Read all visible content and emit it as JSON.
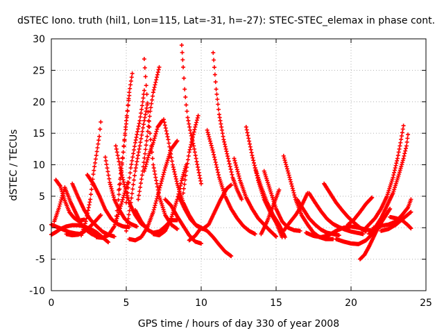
{
  "chart_data": {
    "type": "scatter",
    "title": "dSTEC Iono. truth (hil1, Lon=115, Lat=-31, h=-27): STEC-STEC_elemax in phase cont.",
    "xlabel": "GPS time / hours of day 330 of year 2008",
    "ylabel": "dSTEC  / TECUs",
    "xlim": [
      0,
      25
    ],
    "ylim": [
      -10,
      30
    ],
    "xticks": [
      "0",
      "5",
      "10",
      "15",
      "20",
      "25"
    ],
    "yticks": [
      "-10",
      "-5",
      "0",
      "5",
      "10",
      "15",
      "20",
      "25",
      "30"
    ],
    "grid": true,
    "legend": "none",
    "marker": "plus",
    "color": "#ff0000",
    "series": [
      {
        "x": [
          0.0,
          0.4,
          0.8,
          1.2,
          1.6,
          2.0
        ],
        "y": [
          0.5,
          0.1,
          -0.3,
          -0.7,
          -0.9,
          -1.0
        ]
      },
      {
        "x": [
          0.0,
          0.3,
          0.6,
          1.0,
          1.4,
          1.8,
          2.2,
          2.6,
          3.0,
          3.4,
          3.8
        ],
        "y": [
          -1.1,
          -0.7,
          -0.2,
          0.2,
          0.4,
          0.4,
          0.2,
          -0.2,
          -0.7,
          -1.5,
          -2.3
        ]
      },
      {
        "x": [
          0.3,
          0.6,
          0.9,
          1.2,
          1.5,
          1.8,
          2.2
        ],
        "y": [
          7.6,
          6.6,
          4.3,
          2.5,
          1.6,
          1.1,
          1.3
        ]
      },
      {
        "x": [
          0.2,
          0.5,
          0.9,
          1.3,
          1.7,
          2.0,
          2.4,
          2.7,
          3.0
        ],
        "y": [
          1.0,
          3.1,
          6.4,
          4.0,
          2.0,
          0.5,
          -0.5,
          -1.0,
          -1.3
        ]
      },
      {
        "x": [
          1.4,
          1.8,
          2.2,
          2.6,
          3.0,
          3.4,
          3.8,
          4.2
        ],
        "y": [
          7.0,
          4.8,
          2.8,
          1.3,
          0.3,
          -0.6,
          -1.1,
          -1.4
        ]
      },
      {
        "x": [
          1.0,
          1.4,
          1.8,
          2.2,
          2.6,
          3.0,
          3.3
        ],
        "y": [
          -1.0,
          -1.2,
          -1.1,
          -0.6,
          0.2,
          1.2,
          2.0
        ]
      },
      {
        "x": [
          2.0,
          2.3,
          2.6,
          2.8,
          3.0,
          3.2,
          3.3
        ],
        "y": [
          -1.2,
          1.0,
          4.5,
          8.5,
          11.5,
          14.5,
          16.8
        ]
      },
      {
        "x": [
          2.4,
          2.8,
          3.2,
          3.6,
          4.0,
          4.4,
          4.8,
          5.2
        ],
        "y": [
          8.4,
          7.0,
          5.1,
          2.9,
          1.4,
          0.6,
          0.2,
          0.1
        ]
      },
      {
        "x": [
          3.6,
          3.9,
          4.2,
          4.5,
          4.9,
          5.3,
          5.7
        ],
        "y": [
          11.2,
          7.2,
          4.5,
          3.0,
          1.4,
          0.6,
          0.2
        ]
      },
      {
        "x": [
          3.0,
          3.4,
          3.8,
          4.2,
          4.5,
          4.8,
          5.1
        ],
        "y": [
          -1.5,
          -1.6,
          -1.2,
          0.2,
          2.4,
          4.8,
          7.2
        ]
      },
      {
        "x": [
          4.3,
          4.6,
          4.9,
          5.2,
          5.6,
          6.0,
          6.4
        ],
        "y": [
          13.0,
          9.5,
          6.5,
          4.0,
          2.0,
          0.6,
          0.0
        ]
      },
      {
        "x": [
          4.3,
          4.6,
          4.8,
          5.0,
          5.2
        ],
        "y": [
          1.0,
          7.0,
          12.0,
          17.0,
          21.0
        ]
      },
      {
        "x": [
          4.5,
          4.8,
          5.0,
          5.2,
          5.4
        ],
        "y": [
          6.0,
          12.0,
          16.5,
          21.5,
          24.5
        ]
      },
      {
        "x": [
          5.0,
          5.3,
          5.6,
          5.9,
          6.2,
          6.4
        ],
        "y": [
          -0.5,
          4.0,
          9.0,
          13.0,
          17.0,
          19.5
        ]
      },
      {
        "x": [
          5.0,
          5.3,
          5.6,
          5.9,
          6.1,
          6.2
        ],
        "y": [
          4.0,
          9.5,
          13.5,
          17.0,
          20.0,
          21.8
        ]
      },
      {
        "x": [
          6.2,
          6.5,
          6.8,
          7.2,
          7.6,
          8.0,
          8.4
        ],
        "y": [
          26.8,
          17.0,
          10.0,
          5.0,
          2.0,
          0.5,
          -0.2
        ]
      },
      {
        "x": [
          5.8,
          6.1,
          6.4,
          6.6,
          6.8,
          7.0,
          7.2
        ],
        "y": [
          4.5,
          9.0,
          14.5,
          18.5,
          21.5,
          23.5,
          25.5
        ]
      },
      {
        "x": [
          6.2,
          6.5,
          6.8,
          7.1,
          7.4
        ],
        "y": [
          9.0,
          11.5,
          13.5,
          16.0,
          17.0
        ]
      },
      {
        "x": [
          5.2,
          5.6,
          6.0,
          6.4,
          6.8,
          7.2,
          7.6,
          8.0,
          8.4
        ],
        "y": [
          -1.8,
          -2.0,
          -1.5,
          0.0,
          2.5,
          6.0,
          9.5,
          12.5,
          13.8
        ]
      },
      {
        "x": [
          5.6,
          6.0,
          6.4,
          6.8,
          7.2,
          7.6,
          8.0,
          8.4
        ],
        "y": [
          2.8,
          1.0,
          -0.3,
          -0.8,
          -0.6,
          0.2,
          1.2,
          1.2
        ]
      },
      {
        "x": [
          7.5,
          7.8,
          8.1,
          8.4,
          8.8,
          9.2,
          9.6,
          10.0
        ],
        "y": [
          17.2,
          14.0,
          10.0,
          7.0,
          4.0,
          2.0,
          0.5,
          0.0
        ]
      },
      {
        "x": [
          6.8,
          7.2,
          7.6,
          8.0,
          8.4,
          8.7,
          9.0
        ],
        "y": [
          -1.0,
          -1.2,
          -0.5,
          1.5,
          4.5,
          7.5,
          10.0
        ]
      },
      {
        "x": [
          7.6,
          8.0,
          8.4,
          8.8,
          9.2,
          9.6,
          10.0
        ],
        "y": [
          4.5,
          3.5,
          1.8,
          0.3,
          -1.2,
          -2.2,
          -2.5
        ]
      },
      {
        "x": [
          8.7,
          8.8,
          8.9,
          9.0,
          9.1,
          9.3,
          9.5,
          9.7,
          10.0
        ],
        "y": [
          29.0,
          25.5,
          22.0,
          19.5,
          17.5,
          15.0,
          13.0,
          10.5,
          7.0
        ]
      },
      {
        "x": [
          8.8,
          9.0,
          9.2,
          9.4,
          9.6,
          9.8
        ],
        "y": [
          5.5,
          9.0,
          12.0,
          14.0,
          16.0,
          17.8
        ]
      },
      {
        "x": [
          8.5,
          8.9,
          9.3,
          9.7,
          10.1,
          10.5,
          10.9,
          11.3,
          11.7,
          12.0
        ],
        "y": [
          5.0,
          3.0,
          1.3,
          0.3,
          -0.2,
          0.5,
          2.5,
          4.5,
          6.2,
          6.8
        ]
      },
      {
        "x": [
          9.2,
          9.6,
          10.0,
          10.4,
          10.8,
          11.2,
          11.6,
          12.0
        ],
        "y": [
          -2.0,
          -1.3,
          0.0,
          -0.5,
          -1.5,
          -2.7,
          -3.8,
          -4.5
        ]
      },
      {
        "x": [
          10.8,
          11.0,
          11.2,
          11.5,
          11.8,
          12.1,
          12.4,
          12.7
        ],
        "y": [
          27.8,
          22.0,
          18.0,
          14.0,
          11.0,
          8.0,
          6.0,
          4.5
        ]
      },
      {
        "x": [
          10.4,
          10.8,
          11.2,
          11.6,
          12.0,
          12.4,
          12.8,
          13.2,
          13.6
        ],
        "y": [
          15.5,
          12.0,
          8.0,
          5.0,
          3.0,
          1.5,
          0.3,
          -0.5,
          -1.0
        ]
      },
      {
        "x": [
          12.2,
          12.6,
          13.0,
          13.4,
          13.8,
          14.2,
          14.6,
          15.0
        ],
        "y": [
          11.0,
          7.5,
          4.8,
          3.0,
          1.5,
          0.5,
          -0.5,
          -1.4
        ]
      },
      {
        "x": [
          13.0,
          13.4,
          13.8,
          14.2,
          14.6,
          15.0,
          15.4
        ],
        "y": [
          16.0,
          11.5,
          7.5,
          4.5,
          2.5,
          0.8,
          -1.5
        ]
      },
      {
        "x": [
          13.6,
          14.0,
          14.4,
          14.8,
          15.2,
          15.6
        ],
        "y": [
          9.5,
          6.5,
          4.0,
          2.0,
          0.5,
          -1.5
        ]
      },
      {
        "x": [
          14.2,
          14.6,
          15.0,
          15.4,
          15.8,
          16.2,
          16.6
        ],
        "y": [
          9.0,
          6.0,
          3.0,
          1.0,
          0.0,
          -0.4,
          -0.5
        ]
      },
      {
        "x": [
          14.0,
          14.4,
          14.8,
          15.2
        ],
        "y": [
          -1.0,
          1.0,
          3.5,
          6.0
        ]
      },
      {
        "x": [
          15.5,
          15.9,
          16.3,
          16.7,
          17.1,
          17.5,
          17.9,
          18.3,
          18.8
        ],
        "y": [
          11.4,
          8.0,
          4.5,
          2.0,
          0.5,
          -0.8,
          -1.5,
          -1.8,
          -1.8
        ]
      },
      {
        "x": [
          16.4,
          16.8,
          17.2,
          17.6,
          18.0,
          18.4,
          18.8,
          19.2
        ],
        "y": [
          4.5,
          3.0,
          1.5,
          0.5,
          -0.3,
          -0.8,
          -1.0,
          -1.2
        ]
      },
      {
        "x": [
          15.5,
          15.9,
          16.3,
          16.7,
          17.1
        ],
        "y": [
          -0.5,
          0.8,
          2.0,
          3.5,
          5.5
        ]
      },
      {
        "x": [
          17.2,
          17.6,
          18.0,
          18.4,
          18.8,
          19.2,
          19.6,
          20.0,
          20.4,
          20.8
        ],
        "y": [
          5.5,
          4.0,
          2.6,
          1.4,
          0.6,
          0.1,
          -0.3,
          -0.6,
          -0.8,
          -1.0
        ]
      },
      {
        "x": [
          18.2,
          18.6,
          19.0,
          19.4,
          19.8,
          20.2,
          20.6,
          21.0
        ],
        "y": [
          7.0,
          5.5,
          4.0,
          2.8,
          1.7,
          0.8,
          0.0,
          -0.6
        ]
      },
      {
        "x": [
          17.0,
          17.5,
          18.0,
          18.5,
          19.0,
          19.5,
          20.0,
          20.5,
          21.0,
          21.5
        ],
        "y": [
          -0.8,
          -1.3,
          -1.5,
          -1.2,
          -0.5,
          0.0,
          0.2,
          0.0,
          -0.3,
          -0.5
        ]
      },
      {
        "x": [
          19.0,
          19.5,
          20.0,
          20.5,
          21.0,
          21.5,
          22.0
        ],
        "y": [
          -1.8,
          -2.2,
          -2.5,
          -2.6,
          -2.0,
          -0.8,
          0.3
        ]
      },
      {
        "x": [
          20.6,
          20.9,
          21.2,
          21.5,
          21.8,
          22.2,
          22.6
        ],
        "y": [
          -5.0,
          -4.3,
          -3.0,
          -1.5,
          0.0,
          1.5,
          3.0
        ]
      },
      {
        "x": [
          19.8,
          20.2,
          20.6,
          21.0,
          21.4
        ],
        "y": [
          0.5,
          1.3,
          2.5,
          3.8,
          4.8
        ]
      },
      {
        "x": [
          20.8,
          21.2,
          21.6,
          22.0,
          22.4,
          22.8,
          23.1,
          23.3,
          23.5
        ],
        "y": [
          -0.5,
          0.5,
          1.5,
          3.0,
          5.0,
          8.0,
          11.0,
          13.5,
          16.2
        ]
      },
      {
        "x": [
          21.2,
          21.6,
          22.0,
          22.4,
          22.8,
          23.2,
          23.5,
          23.7,
          23.8
        ],
        "y": [
          -1.0,
          0.0,
          1.5,
          3.5,
          5.5,
          8.5,
          11.0,
          13.0,
          14.8
        ]
      },
      {
        "x": [
          21.5,
          22.0,
          22.5,
          23.0,
          23.4,
          23.8,
          24.0
        ],
        "y": [
          0.0,
          0.3,
          0.5,
          1.0,
          2.0,
          3.2,
          4.5
        ]
      },
      {
        "x": [
          22.6,
          23.0,
          23.4,
          23.8,
          24.0
        ],
        "y": [
          1.7,
          1.5,
          1.2,
          0.4,
          -0.1
        ]
      },
      {
        "x": [
          22.0,
          22.5,
          23.0,
          23.5,
          24.0
        ],
        "y": [
          -0.5,
          -0.2,
          0.5,
          1.5,
          2.5
        ]
      }
    ]
  }
}
